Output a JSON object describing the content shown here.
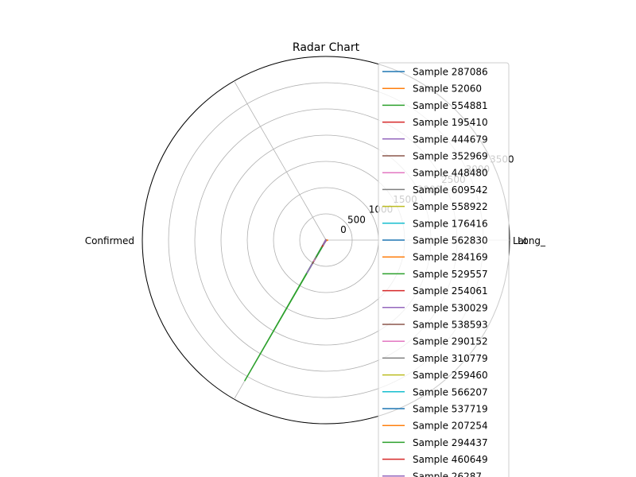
{
  "chart_data": {
    "type": "radar",
    "title": "Radar Chart",
    "axes": [
      "Lat",
      "Long_",
      "Confirmed"
    ],
    "radial_ticks": [
      "0",
      "500",
      "1000",
      "1500",
      "2000",
      "2500",
      "3000",
      "3500"
    ],
    "rlim": [
      0,
      3500
    ],
    "grid": true,
    "legend_position": "right",
    "series": [
      {
        "name": "Sample 287086",
        "color": "#1f77b4",
        "values": [
          5,
          5,
          5
        ]
      },
      {
        "name": "Sample 52060",
        "color": "#ff7f0e",
        "values": [
          10,
          5,
          150
        ]
      },
      {
        "name": "Sample 554881",
        "color": "#2ca02c",
        "values": [
          5,
          5,
          3100
        ]
      },
      {
        "name": "Sample 195410",
        "color": "#d62728",
        "values": [
          5,
          5,
          10
        ]
      },
      {
        "name": "Sample 444679",
        "color": "#9467bd",
        "values": [
          5,
          5,
          730
        ]
      },
      {
        "name": "Sample 352969",
        "color": "#8c564b",
        "values": [
          5,
          5,
          520
        ]
      },
      {
        "name": "Sample 448480",
        "color": "#e377c2",
        "values": [
          5,
          5,
          470
        ]
      },
      {
        "name": "Sample 609542",
        "color": "#7f7f7f",
        "values": [
          5,
          5,
          430
        ]
      },
      {
        "name": "Sample 558922",
        "color": "#bcbd22",
        "values": [
          5,
          5,
          20
        ]
      },
      {
        "name": "Sample 176416",
        "color": "#17becf",
        "values": [
          5,
          5,
          330
        ]
      },
      {
        "name": "Sample 562830",
        "color": "#1f77b4",
        "values": [
          5,
          5,
          30
        ]
      },
      {
        "name": "Sample 284169",
        "color": "#ff7f0e",
        "values": [
          40,
          5,
          20
        ]
      },
      {
        "name": "Sample 529557",
        "color": "#2ca02c",
        "values": [
          5,
          5,
          380
        ]
      },
      {
        "name": "Sample 254061",
        "color": "#d62728",
        "values": [
          5,
          5,
          50
        ]
      },
      {
        "name": "Sample 530029",
        "color": "#9467bd",
        "values": [
          5,
          5,
          60
        ]
      },
      {
        "name": "Sample 538593",
        "color": "#8c564b",
        "values": [
          5,
          5,
          80
        ]
      },
      {
        "name": "Sample 290152",
        "color": "#e377c2",
        "values": [
          5,
          5,
          40
        ]
      },
      {
        "name": "Sample 310779",
        "color": "#7f7f7f",
        "values": [
          5,
          5,
          100
        ]
      },
      {
        "name": "Sample 259460",
        "color": "#bcbd22",
        "values": [
          5,
          5,
          70
        ]
      },
      {
        "name": "Sample 566207",
        "color": "#17becf",
        "values": [
          5,
          5,
          90
        ]
      },
      {
        "name": "Sample 537719",
        "color": "#1f77b4",
        "values": [
          5,
          5,
          120
        ]
      },
      {
        "name": "Sample 207254",
        "color": "#ff7f0e",
        "values": [
          5,
          5,
          60
        ]
      },
      {
        "name": "Sample 294437",
        "color": "#2ca02c",
        "values": [
          5,
          5,
          200
        ]
      },
      {
        "name": "Sample 460649",
        "color": "#d62728",
        "values": [
          5,
          5,
          150
        ]
      },
      {
        "name": "Sample 26287",
        "color": "#9467bd",
        "values": [
          5,
          5,
          110
        ]
      }
    ]
  }
}
